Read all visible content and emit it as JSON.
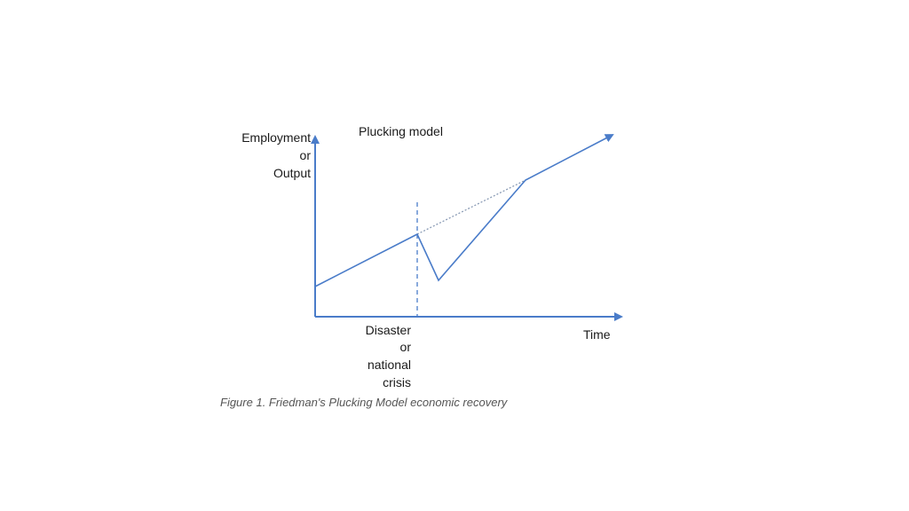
{
  "diagram": {
    "title": "Plucking model",
    "y_axis_label": [
      "Employment",
      "or",
      "Output"
    ],
    "x_axis_label": "Time",
    "event_label": [
      "Disaster",
      "or",
      "national",
      "crisis"
    ],
    "caption": "Figure 1. Friedman's Plucking Model economic recovery",
    "colors": {
      "axis": "#4a7cc9",
      "line": "#4a7cc9",
      "trend_dotted": "#8a9bb5",
      "text": "#1a1a1a",
      "caption": "#555555"
    }
  }
}
